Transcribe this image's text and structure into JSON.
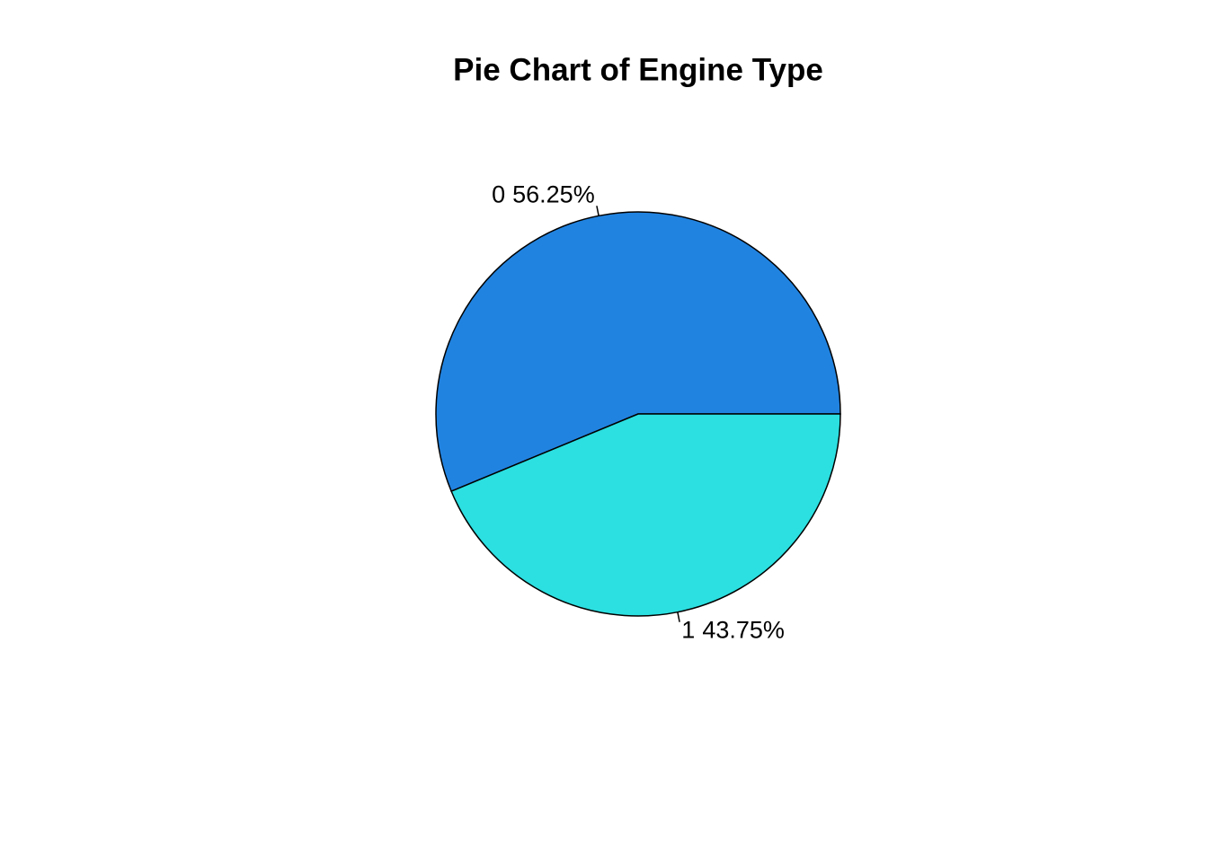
{
  "chart_data": {
    "type": "pie",
    "title": "Pie Chart of Engine Type",
    "categories": [
      "0",
      "1"
    ],
    "values": [
      56.25,
      43.75
    ],
    "value_labels": [
      "56.25%",
      "43.75%"
    ],
    "colors": [
      "#2183e0",
      "#2cdfe0"
    ],
    "start_angle": 0,
    "direction": "counterclockwise"
  }
}
